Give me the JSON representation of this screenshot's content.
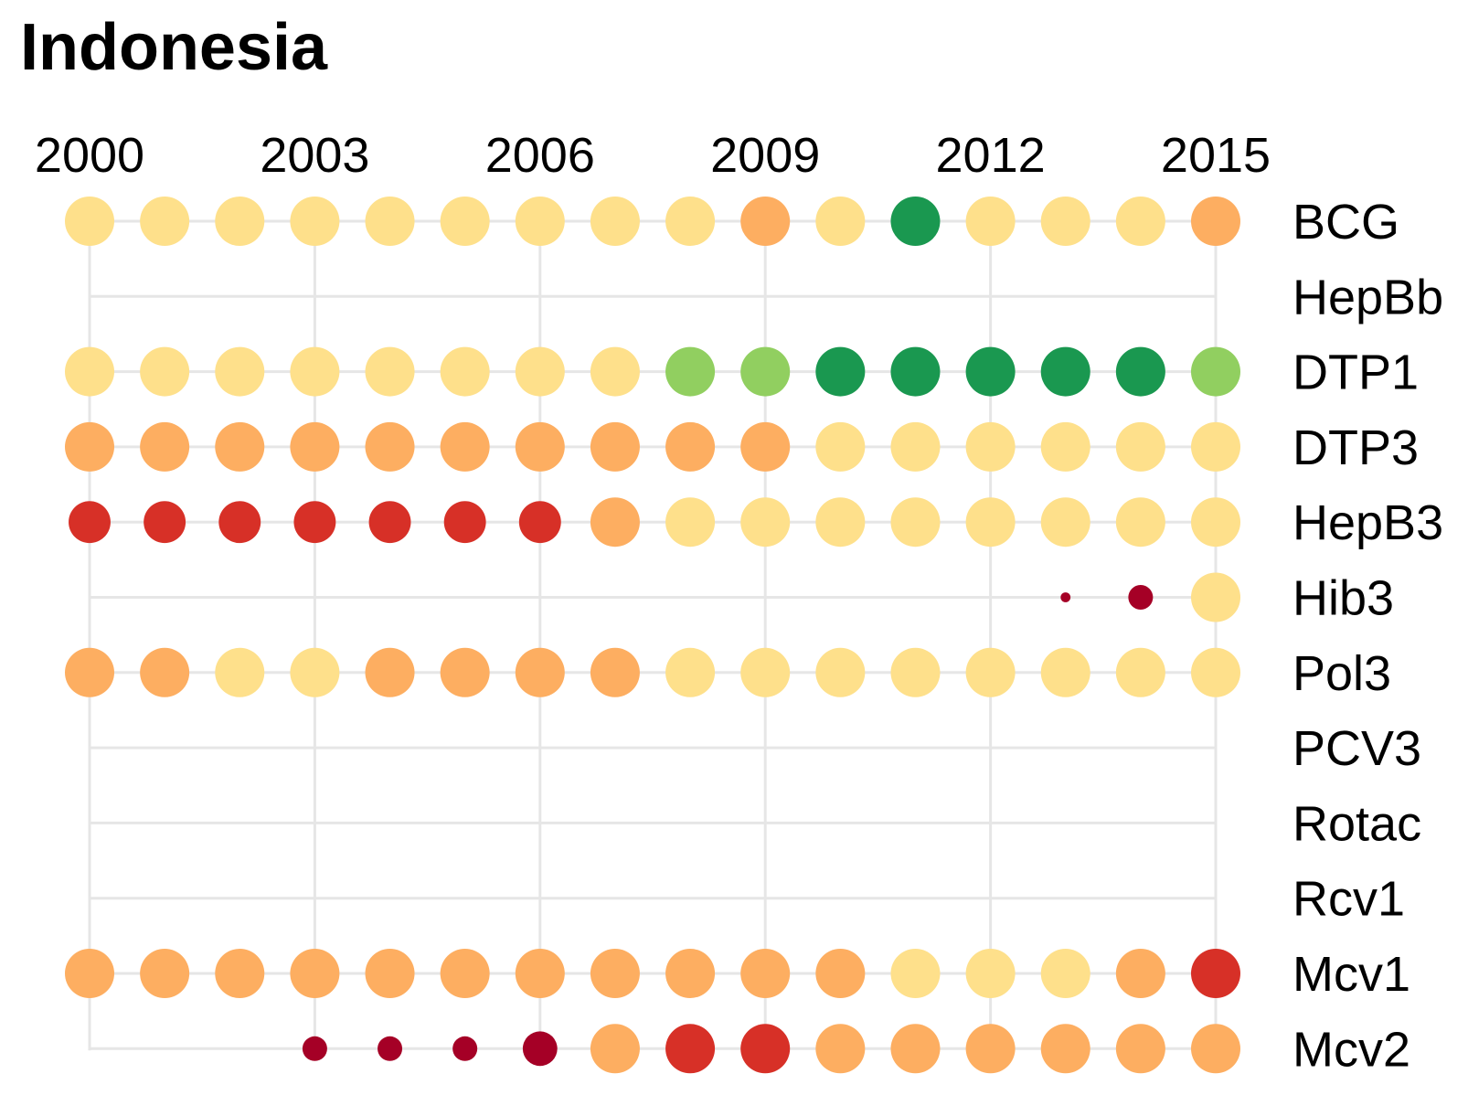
{
  "chart_data": {
    "type": "scatter",
    "title": "Indonesia",
    "xlabel": "",
    "ylabel": "",
    "x": [
      2000,
      2001,
      2002,
      2003,
      2004,
      2005,
      2006,
      2007,
      2008,
      2009,
      2010,
      2011,
      2012,
      2013,
      2014,
      2015
    ],
    "x_ticks": [
      "2000",
      "2003",
      "2006",
      "2009",
      "2012",
      "2015"
    ],
    "xlim": [
      2000,
      2015
    ],
    "x_axis_position": "top",
    "y_categories": [
      "BCG",
      "HepBb",
      "DTP1",
      "DTP3",
      "HepB3",
      "Hib3",
      "Pol3",
      "PCV3",
      "Rotac",
      "Rcv1",
      "Mcv1",
      "Mcv2"
    ],
    "y_axis_position": "right",
    "grid": true,
    "legend": "none",
    "color_levels": {
      "dark_red": "#a50026",
      "red": "#d73027",
      "orange": "#fdae61",
      "yellow": "#fee08b",
      "light_green": "#91cf60",
      "green": "#1a9850"
    },
    "size_levels": {
      "tiny": 0.2,
      "small": 0.5,
      "medium": 0.7,
      "large": 0.85,
      "full": 1.0
    },
    "series": [
      {
        "name": "BCG",
        "points": [
          {
            "x": 2000,
            "color": "yellow",
            "size": "full"
          },
          {
            "x": 2001,
            "color": "yellow",
            "size": "full"
          },
          {
            "x": 2002,
            "color": "yellow",
            "size": "full"
          },
          {
            "x": 2003,
            "color": "yellow",
            "size": "full"
          },
          {
            "x": 2004,
            "color": "yellow",
            "size": "full"
          },
          {
            "x": 2005,
            "color": "yellow",
            "size": "full"
          },
          {
            "x": 2006,
            "color": "yellow",
            "size": "full"
          },
          {
            "x": 2007,
            "color": "yellow",
            "size": "full"
          },
          {
            "x": 2008,
            "color": "yellow",
            "size": "full"
          },
          {
            "x": 2009,
            "color": "orange",
            "size": "full"
          },
          {
            "x": 2010,
            "color": "yellow",
            "size": "full"
          },
          {
            "x": 2011,
            "color": "green",
            "size": "full"
          },
          {
            "x": 2012,
            "color": "yellow",
            "size": "full"
          },
          {
            "x": 2013,
            "color": "yellow",
            "size": "full"
          },
          {
            "x": 2014,
            "color": "yellow",
            "size": "full"
          },
          {
            "x": 2015,
            "color": "orange",
            "size": "full"
          }
        ]
      },
      {
        "name": "HepBb",
        "points": []
      },
      {
        "name": "DTP1",
        "points": [
          {
            "x": 2000,
            "color": "yellow",
            "size": "full"
          },
          {
            "x": 2001,
            "color": "yellow",
            "size": "full"
          },
          {
            "x": 2002,
            "color": "yellow",
            "size": "full"
          },
          {
            "x": 2003,
            "color": "yellow",
            "size": "full"
          },
          {
            "x": 2004,
            "color": "yellow",
            "size": "full"
          },
          {
            "x": 2005,
            "color": "yellow",
            "size": "full"
          },
          {
            "x": 2006,
            "color": "yellow",
            "size": "full"
          },
          {
            "x": 2007,
            "color": "yellow",
            "size": "full"
          },
          {
            "x": 2008,
            "color": "light_green",
            "size": "full"
          },
          {
            "x": 2009,
            "color": "light_green",
            "size": "full"
          },
          {
            "x": 2010,
            "color": "green",
            "size": "full"
          },
          {
            "x": 2011,
            "color": "green",
            "size": "full"
          },
          {
            "x": 2012,
            "color": "green",
            "size": "full"
          },
          {
            "x": 2013,
            "color": "green",
            "size": "full"
          },
          {
            "x": 2014,
            "color": "green",
            "size": "full"
          },
          {
            "x": 2015,
            "color": "light_green",
            "size": "full"
          }
        ]
      },
      {
        "name": "DTP3",
        "points": [
          {
            "x": 2000,
            "color": "orange",
            "size": "full"
          },
          {
            "x": 2001,
            "color": "orange",
            "size": "full"
          },
          {
            "x": 2002,
            "color": "orange",
            "size": "full"
          },
          {
            "x": 2003,
            "color": "orange",
            "size": "full"
          },
          {
            "x": 2004,
            "color": "orange",
            "size": "full"
          },
          {
            "x": 2005,
            "color": "orange",
            "size": "full"
          },
          {
            "x": 2006,
            "color": "orange",
            "size": "full"
          },
          {
            "x": 2007,
            "color": "orange",
            "size": "full"
          },
          {
            "x": 2008,
            "color": "orange",
            "size": "full"
          },
          {
            "x": 2009,
            "color": "orange",
            "size": "full"
          },
          {
            "x": 2010,
            "color": "yellow",
            "size": "full"
          },
          {
            "x": 2011,
            "color": "yellow",
            "size": "full"
          },
          {
            "x": 2012,
            "color": "yellow",
            "size": "full"
          },
          {
            "x": 2013,
            "color": "yellow",
            "size": "full"
          },
          {
            "x": 2014,
            "color": "yellow",
            "size": "full"
          },
          {
            "x": 2015,
            "color": "yellow",
            "size": "full"
          }
        ]
      },
      {
        "name": "HepB3",
        "points": [
          {
            "x": 2000,
            "color": "red",
            "size": "large"
          },
          {
            "x": 2001,
            "color": "red",
            "size": "large"
          },
          {
            "x": 2002,
            "color": "red",
            "size": "large"
          },
          {
            "x": 2003,
            "color": "red",
            "size": "large"
          },
          {
            "x": 2004,
            "color": "red",
            "size": "large"
          },
          {
            "x": 2005,
            "color": "red",
            "size": "large"
          },
          {
            "x": 2006,
            "color": "red",
            "size": "large"
          },
          {
            "x": 2007,
            "color": "orange",
            "size": "full"
          },
          {
            "x": 2008,
            "color": "yellow",
            "size": "full"
          },
          {
            "x": 2009,
            "color": "yellow",
            "size": "full"
          },
          {
            "x": 2010,
            "color": "yellow",
            "size": "full"
          },
          {
            "x": 2011,
            "color": "yellow",
            "size": "full"
          },
          {
            "x": 2012,
            "color": "yellow",
            "size": "full"
          },
          {
            "x": 2013,
            "color": "yellow",
            "size": "full"
          },
          {
            "x": 2014,
            "color": "yellow",
            "size": "full"
          },
          {
            "x": 2015,
            "color": "yellow",
            "size": "full"
          }
        ]
      },
      {
        "name": "Hib3",
        "points": [
          {
            "x": 2013,
            "color": "dark_red",
            "size": "tiny"
          },
          {
            "x": 2014,
            "color": "dark_red",
            "size": "small"
          },
          {
            "x": 2015,
            "color": "yellow",
            "size": "full"
          }
        ]
      },
      {
        "name": "Pol3",
        "points": [
          {
            "x": 2000,
            "color": "orange",
            "size": "full"
          },
          {
            "x": 2001,
            "color": "orange",
            "size": "full"
          },
          {
            "x": 2002,
            "color": "yellow",
            "size": "full"
          },
          {
            "x": 2003,
            "color": "yellow",
            "size": "full"
          },
          {
            "x": 2004,
            "color": "orange",
            "size": "full"
          },
          {
            "x": 2005,
            "color": "orange",
            "size": "full"
          },
          {
            "x": 2006,
            "color": "orange",
            "size": "full"
          },
          {
            "x": 2007,
            "color": "orange",
            "size": "full"
          },
          {
            "x": 2008,
            "color": "yellow",
            "size": "full"
          },
          {
            "x": 2009,
            "color": "yellow",
            "size": "full"
          },
          {
            "x": 2010,
            "color": "yellow",
            "size": "full"
          },
          {
            "x": 2011,
            "color": "yellow",
            "size": "full"
          },
          {
            "x": 2012,
            "color": "yellow",
            "size": "full"
          },
          {
            "x": 2013,
            "color": "yellow",
            "size": "full"
          },
          {
            "x": 2014,
            "color": "yellow",
            "size": "full"
          },
          {
            "x": 2015,
            "color": "yellow",
            "size": "full"
          }
        ]
      },
      {
        "name": "PCV3",
        "points": []
      },
      {
        "name": "Rotac",
        "points": []
      },
      {
        "name": "Rcv1",
        "points": []
      },
      {
        "name": "Mcv1",
        "points": [
          {
            "x": 2000,
            "color": "orange",
            "size": "full"
          },
          {
            "x": 2001,
            "color": "orange",
            "size": "full"
          },
          {
            "x": 2002,
            "color": "orange",
            "size": "full"
          },
          {
            "x": 2003,
            "color": "orange",
            "size": "full"
          },
          {
            "x": 2004,
            "color": "orange",
            "size": "full"
          },
          {
            "x": 2005,
            "color": "orange",
            "size": "full"
          },
          {
            "x": 2006,
            "color": "orange",
            "size": "full"
          },
          {
            "x": 2007,
            "color": "orange",
            "size": "full"
          },
          {
            "x": 2008,
            "color": "orange",
            "size": "full"
          },
          {
            "x": 2009,
            "color": "orange",
            "size": "full"
          },
          {
            "x": 2010,
            "color": "orange",
            "size": "full"
          },
          {
            "x": 2011,
            "color": "yellow",
            "size": "full"
          },
          {
            "x": 2012,
            "color": "yellow",
            "size": "full"
          },
          {
            "x": 2013,
            "color": "yellow",
            "size": "full"
          },
          {
            "x": 2014,
            "color": "orange",
            "size": "full"
          },
          {
            "x": 2015,
            "color": "red",
            "size": "full"
          }
        ]
      },
      {
        "name": "Mcv2",
        "points": [
          {
            "x": 2003,
            "color": "dark_red",
            "size": "small"
          },
          {
            "x": 2004,
            "color": "dark_red",
            "size": "small"
          },
          {
            "x": 2005,
            "color": "dark_red",
            "size": "small"
          },
          {
            "x": 2006,
            "color": "dark_red",
            "size": "medium"
          },
          {
            "x": 2007,
            "color": "orange",
            "size": "full"
          },
          {
            "x": 2008,
            "color": "red",
            "size": "full"
          },
          {
            "x": 2009,
            "color": "red",
            "size": "full"
          },
          {
            "x": 2010,
            "color": "orange",
            "size": "full"
          },
          {
            "x": 2011,
            "color": "orange",
            "size": "full"
          },
          {
            "x": 2012,
            "color": "orange",
            "size": "full"
          },
          {
            "x": 2013,
            "color": "orange",
            "size": "full"
          },
          {
            "x": 2014,
            "color": "orange",
            "size": "full"
          },
          {
            "x": 2015,
            "color": "orange",
            "size": "full"
          }
        ]
      }
    ]
  }
}
